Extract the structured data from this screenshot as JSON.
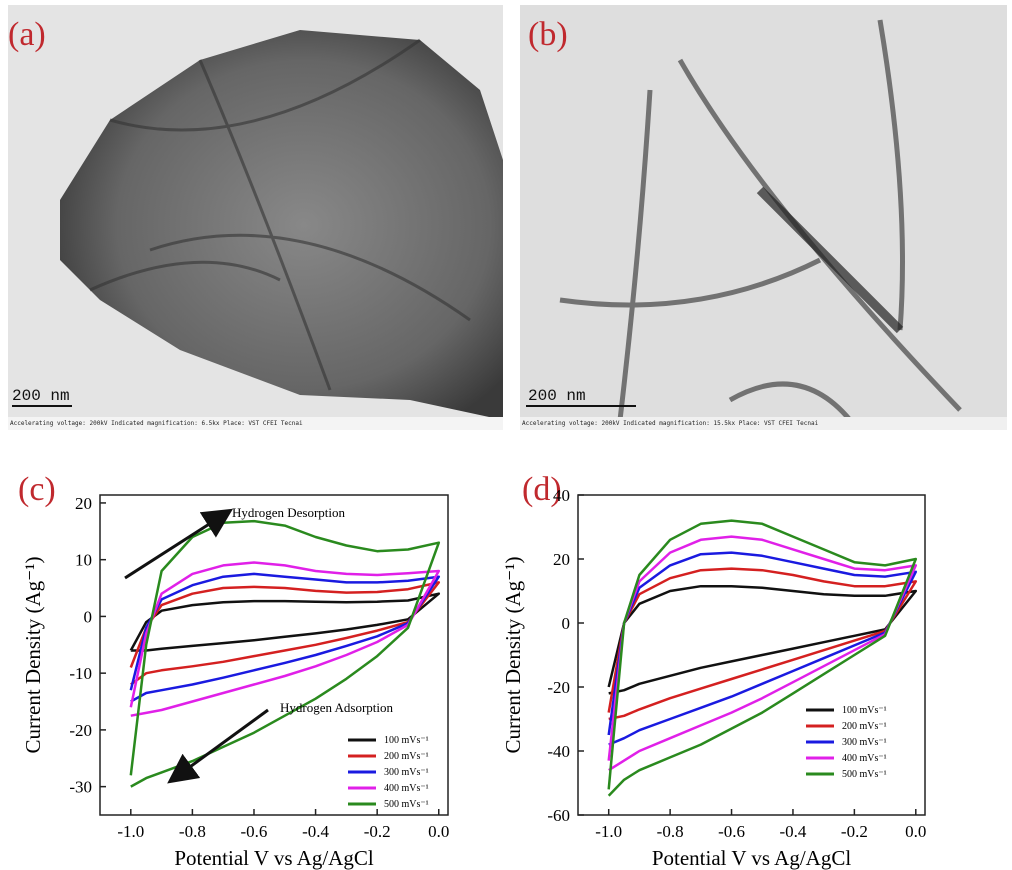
{
  "panels": [
    {
      "label": "(a)",
      "scale_bar": "200 nm",
      "caption": "Accelerating voltage: 200kV  Indicated magnification: 6.5kx  Place: VST CFEI Tecnai"
    },
    {
      "label": "(b)",
      "scale_bar": "200 nm",
      "caption": "Accelerating voltage: 200kV  Indicated magnification: 15.5kx  Place: VST CFEI Tecnai"
    }
  ],
  "chart_data": [
    {
      "type": "line",
      "panel_label": "(c)",
      "x_label": "Potential V vs Ag/AgCl",
      "y_label": "Current Density (Ag⁻¹)",
      "annotations": [
        "Hydrogen Desorption",
        "Hydrogen Adsorption"
      ],
      "x": [
        -1,
        -0.95,
        -0.9,
        -0.8,
        -0.7,
        -0.6,
        -0.5,
        -0.4,
        -0.3,
        -0.2,
        -0.1,
        0,
        -0.1,
        -0.2,
        -0.3,
        -0.4,
        -0.5,
        -0.6,
        -0.7,
        -0.8,
        -0.9,
        -0.95,
        -1
      ],
      "xlim": [
        -1.1,
        0.03
      ],
      "ylim": [
        -35,
        21.4
      ],
      "xticks": [
        {
          "value": -1,
          "label": "-1.0"
        },
        -0.8,
        -0.6,
        -0.4,
        -0.2,
        {
          "value": 0,
          "label": "0.0"
        }
      ],
      "yticks": [
        -30,
        -20,
        -10,
        0,
        10,
        20
      ],
      "legend": "lower right",
      "series": [
        {
          "name": "100 mVs⁻¹",
          "color": "#111111",
          "values": [
            -6,
            -1,
            1,
            2,
            2.5,
            2.7,
            2.7,
            2.6,
            2.5,
            2.6,
            2.8,
            4,
            -0.5,
            -1.5,
            -2.3,
            -3,
            -3.6,
            -4.2,
            -4.7,
            -5.2,
            -5.7,
            -6,
            -6
          ]
        },
        {
          "name": "200 mVs⁻¹",
          "color": "#d42020",
          "values": [
            -9,
            -2,
            2,
            4,
            5,
            5.2,
            5,
            4.5,
            4.2,
            4.3,
            4.8,
            6,
            -1,
            -2.5,
            -3.8,
            -5,
            -6,
            -7,
            -8,
            -8.8,
            -9.5,
            -10,
            -12
          ]
        },
        {
          "name": "300 mVs⁻¹",
          "color": "#1a1ae0",
          "values": [
            -13,
            -2,
            3,
            5.5,
            7,
            7.5,
            7,
            6.5,
            6,
            6,
            6.3,
            7,
            -1.2,
            -3.5,
            -5.2,
            -6.8,
            -8.2,
            -9.5,
            -10.8,
            -12,
            -13,
            -13.5,
            -15
          ]
        },
        {
          "name": "400 mVs⁻¹",
          "color": "#e020e8",
          "values": [
            -16,
            -3,
            4,
            7.5,
            9,
            9.5,
            9,
            8,
            7.5,
            7.3,
            7.6,
            8,
            -1.5,
            -4.5,
            -6.8,
            -8.8,
            -10.5,
            -12,
            -13.5,
            -15,
            -16.5,
            -17,
            -17.5
          ]
        },
        {
          "name": "500 mVs⁻¹",
          "color": "#2a8a1e",
          "values": [
            -28,
            -5,
            8,
            14,
            16.5,
            16.8,
            16,
            14,
            12.5,
            11.5,
            11.8,
            13,
            -2,
            -7,
            -11,
            -14.5,
            -17.5,
            -20.5,
            -23,
            -25.5,
            -27.5,
            -28.5,
            -30
          ]
        }
      ]
    },
    {
      "type": "line",
      "panel_label": "(d)",
      "x_label": "Potential V vs Ag/AgCl",
      "y_label": "Current Density (Ag⁻¹)",
      "x": [
        -1,
        -0.95,
        -0.9,
        -0.8,
        -0.7,
        -0.6,
        -0.5,
        -0.4,
        -0.3,
        -0.2,
        -0.1,
        0,
        -0.1,
        -0.2,
        -0.3,
        -0.4,
        -0.5,
        -0.6,
        -0.7,
        -0.8,
        -0.9,
        -0.95,
        -1
      ],
      "xlim": [
        -1.1,
        0.03
      ],
      "ylim": [
        -60,
        40
      ],
      "xticks": [
        {
          "value": -1,
          "label": "-1.0"
        },
        -0.8,
        -0.6,
        -0.4,
        -0.2,
        {
          "value": 0,
          "label": "0.0"
        }
      ],
      "yticks": [
        -60,
        -40,
        -20,
        0,
        20,
        40
      ],
      "legend": "lower right",
      "series": [
        {
          "name": "100 mVs⁻¹",
          "color": "#111111",
          "values": [
            -20,
            0,
            6,
            10,
            11.5,
            11.5,
            11,
            10,
            9,
            8.5,
            8.5,
            10,
            -2,
            -4,
            -6,
            -8,
            -10,
            -12,
            -14,
            -16.5,
            -19,
            -21,
            -22
          ]
        },
        {
          "name": "200 mVs⁻¹",
          "color": "#d42020",
          "values": [
            -28,
            0,
            9,
            14,
            16.5,
            17,
            16.5,
            15,
            13,
            11.5,
            11.5,
            13,
            -2.5,
            -5.5,
            -8.5,
            -11.5,
            -14.5,
            -17.5,
            -20.5,
            -23.5,
            -27,
            -29,
            -30
          ]
        },
        {
          "name": "300 mVs⁻¹",
          "color": "#1a1ae0",
          "values": [
            -35,
            0,
            11,
            18,
            21.5,
            22,
            21,
            19,
            17,
            15,
            14.5,
            16,
            -3,
            -7,
            -11,
            -15,
            -19,
            -23,
            -26.5,
            -30,
            -33.5,
            -36,
            -38
          ]
        },
        {
          "name": "400 mVs⁻¹",
          "color": "#e020e8",
          "values": [
            -43,
            0,
            13,
            22,
            26,
            27,
            26,
            23,
            20,
            17,
            16.5,
            18,
            -3.5,
            -8.5,
            -13.5,
            -18.5,
            -23.5,
            -28,
            -32,
            -36,
            -40,
            -43,
            -46
          ]
        },
        {
          "name": "500 mVs⁻¹",
          "color": "#2a8a1e",
          "values": [
            -52,
            0,
            15,
            26,
            31,
            32,
            31,
            27,
            23,
            19,
            18,
            20,
            -4,
            -10,
            -16,
            -22,
            -28,
            -33,
            -38,
            -42,
            -46,
            -49,
            -54
          ]
        }
      ]
    }
  ]
}
